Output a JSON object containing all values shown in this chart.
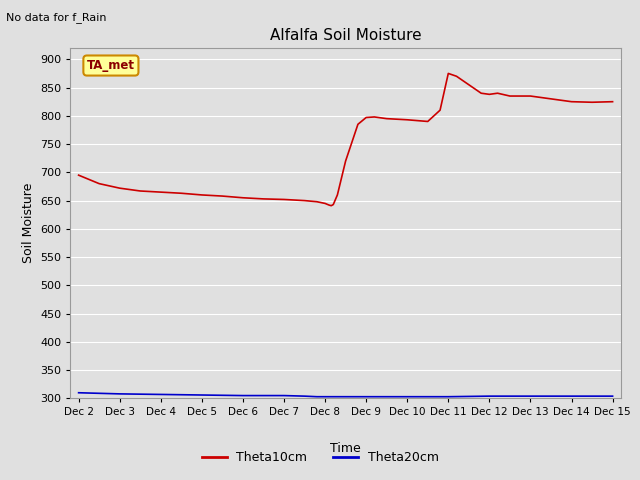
{
  "title": "Alfalfa Soil Moisture",
  "top_left_text": "No data for f_Rain",
  "xlabel": "Time",
  "ylabel": "Soil Moisture",
  "ylim": [
    300,
    920
  ],
  "yticks": [
    300,
    350,
    400,
    450,
    500,
    550,
    600,
    650,
    700,
    750,
    800,
    850,
    900
  ],
  "xtick_labels": [
    "Dec 2",
    "Dec 3",
    "Dec 4",
    "Dec 5",
    "Dec 6",
    "Dec 7",
    "Dec 8",
    "Dec 9",
    "Dec 10",
    "Dec 11",
    "Dec 12",
    "Dec 13",
    "Dec 14",
    "Dec 15"
  ],
  "background_color": "#e0e0e0",
  "plot_bg_color": "#e0e0e0",
  "grid_color": "#ffffff",
  "legend_label1": "Theta10cm",
  "legend_label2": "Theta20cm",
  "line1_color": "#cc0000",
  "line2_color": "#0000cc",
  "annotation_box_text": "TA_met",
  "annotation_box_bg": "#ffff99",
  "annotation_box_border": "#cc8800",
  "theta10_x": [
    0,
    0.5,
    1,
    1.5,
    2,
    2.5,
    3,
    3.5,
    4,
    4.5,
    5,
    5.5,
    5.8,
    6.0,
    6.1,
    6.15,
    6.2,
    6.3,
    6.5,
    6.8,
    7.0,
    7.2,
    7.5,
    8.0,
    8.5,
    8.8,
    9.0,
    9.2,
    9.5,
    9.8,
    10.0,
    10.2,
    10.5,
    11.0,
    11.5,
    12.0,
    12.5,
    13.0
  ],
  "theta10_y": [
    695,
    680,
    672,
    667,
    665,
    663,
    660,
    658,
    655,
    653,
    652,
    650,
    648,
    645,
    642,
    641,
    643,
    660,
    720,
    785,
    797,
    798,
    795,
    793,
    790,
    810,
    875,
    870,
    855,
    840,
    838,
    840,
    835,
    835,
    830,
    825,
    824,
    825
  ],
  "theta20_x": [
    0,
    1,
    2,
    3,
    4,
    5,
    5.5,
    5.8,
    6.0,
    6.5,
    7.0,
    8.0,
    9.0,
    10.0,
    11.0,
    12.0,
    13.0
  ],
  "theta20_y": [
    310,
    308,
    307,
    306,
    305,
    305,
    304,
    303,
    303,
    303,
    303,
    303,
    303,
    304,
    304,
    304,
    304
  ],
  "figsize": [
    6.4,
    4.8
  ],
  "dpi": 100
}
